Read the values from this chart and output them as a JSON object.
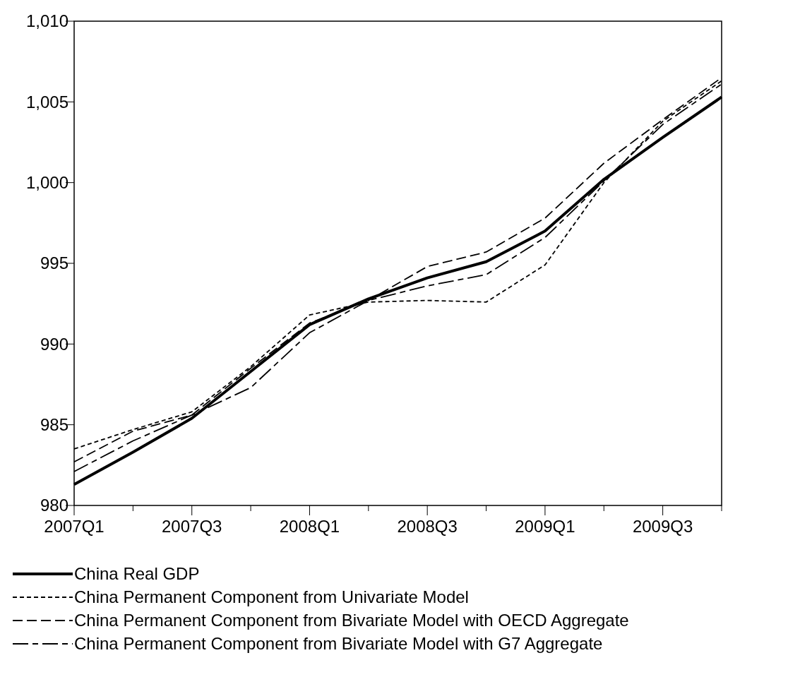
{
  "chart_data": {
    "type": "line",
    "categories": [
      "2007Q1",
      null,
      "2007Q3",
      null,
      "2008Q1",
      null,
      "2008Q3",
      null,
      "2009Q1",
      null,
      "2009Q3",
      null
    ],
    "ylim": [
      980,
      1010
    ],
    "yticks": [
      980,
      985,
      990,
      995,
      {
        "value": 1000,
        "label": "1,000"
      },
      {
        "value": 1005,
        "label": "1,005"
      },
      {
        "value": 1010,
        "label": "1,010"
      }
    ],
    "grid": false,
    "legend": "bottom",
    "series": [
      {
        "name": "China Real GDP",
        "color": "#000000",
        "line_style": "solid",
        "values": [
          981.3,
          983.3,
          985.4,
          988.3,
          991.2,
          992.8,
          994.1,
          995.1,
          997.0,
          1000.2,
          1002.8,
          1005.3
        ]
      },
      {
        "name": "China Permanent Component from Univariate Model",
        "color": "#000000",
        "line_style": "dashed",
        "values": [
          983.5,
          984.7,
          985.8,
          988.6,
          991.8,
          992.6,
          992.7,
          992.6,
          994.9,
          1000.0,
          1003.8,
          1006.3
        ]
      },
      {
        "name": "China Permanent Component from Bivariate Model with OECD Aggregate",
        "color": "#000000",
        "line_style": "dashed",
        "values": [
          982.7,
          984.6,
          985.6,
          988.5,
          991.3,
          992.7,
          994.8,
          995.7,
          997.8,
          1001.2,
          1003.9,
          1006.5
        ]
      },
      {
        "name": "China Permanent Component from Bivariate Model with G7 Aggregate",
        "color": "#000000",
        "line_style": "dashed",
        "values": [
          982.1,
          984.0,
          985.6,
          987.3,
          990.7,
          992.7,
          993.6,
          994.3,
          996.6,
          1000.1,
          1003.6,
          1006.1
        ]
      }
    ]
  }
}
